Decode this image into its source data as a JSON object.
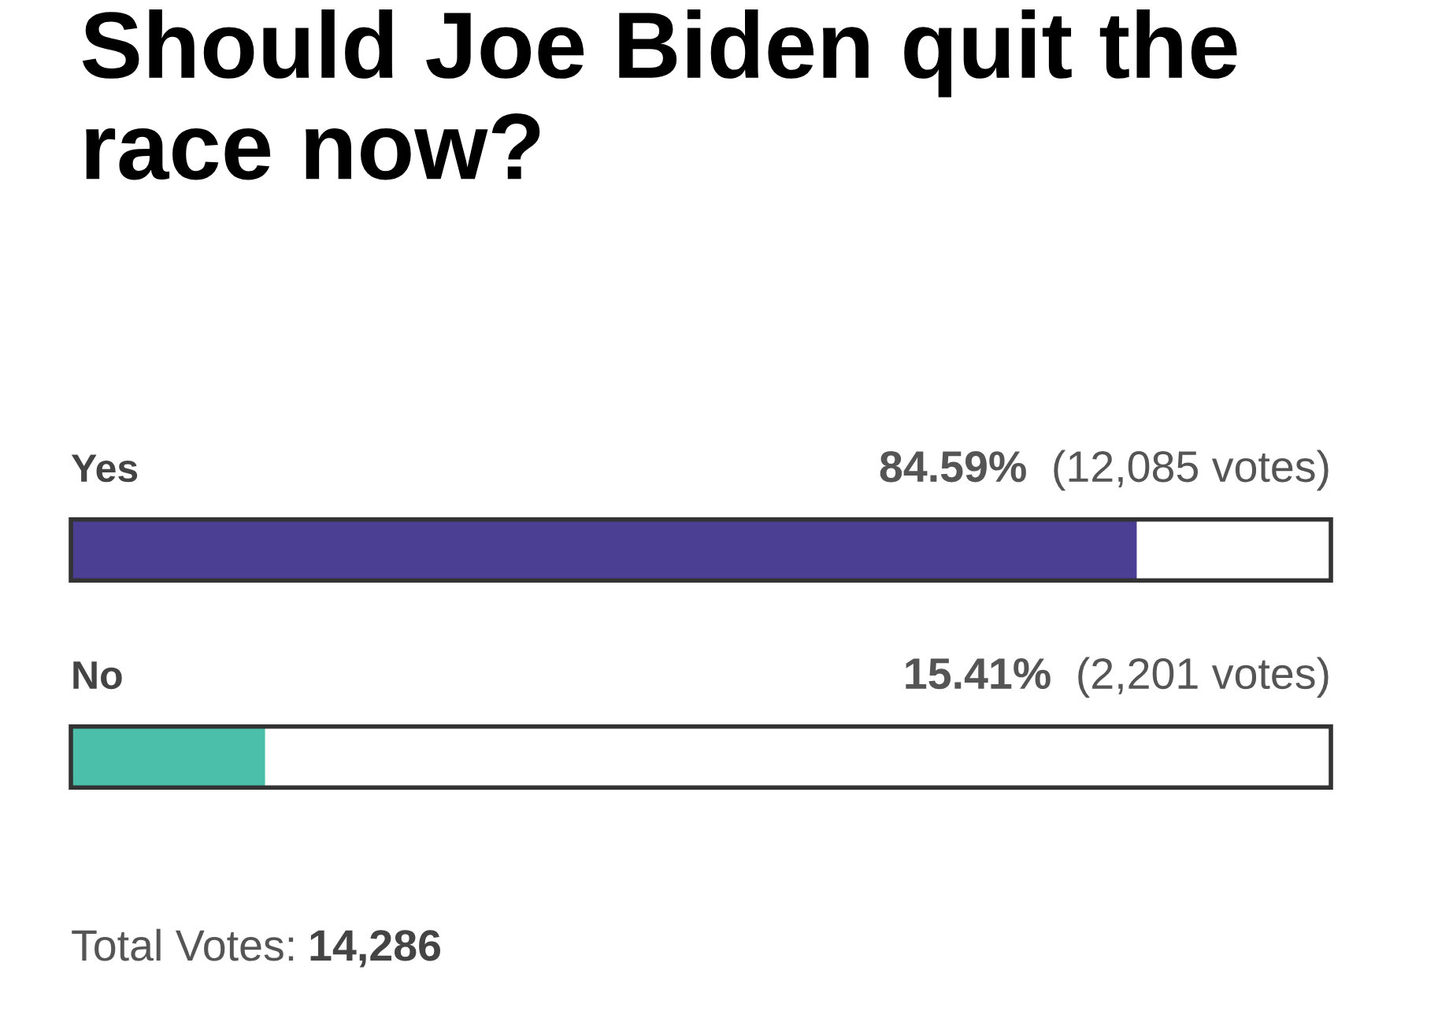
{
  "chart_data": {
    "type": "bar",
    "orientation": "horizontal",
    "title": "Should Joe Biden quit the race now?",
    "categories": [
      "Yes",
      "No"
    ],
    "values": [
      84.59,
      15.41
    ],
    "colors": [
      "#4b3f93",
      "#4bbfaa"
    ],
    "value_labels": [
      "84.59% (12,085 votes)",
      "15.41% (2,201 votes)"
    ],
    "xlim": [
      0,
      100
    ],
    "tick_labels": false,
    "annotations": [
      "Total Votes: 14,286"
    ]
  }
}
